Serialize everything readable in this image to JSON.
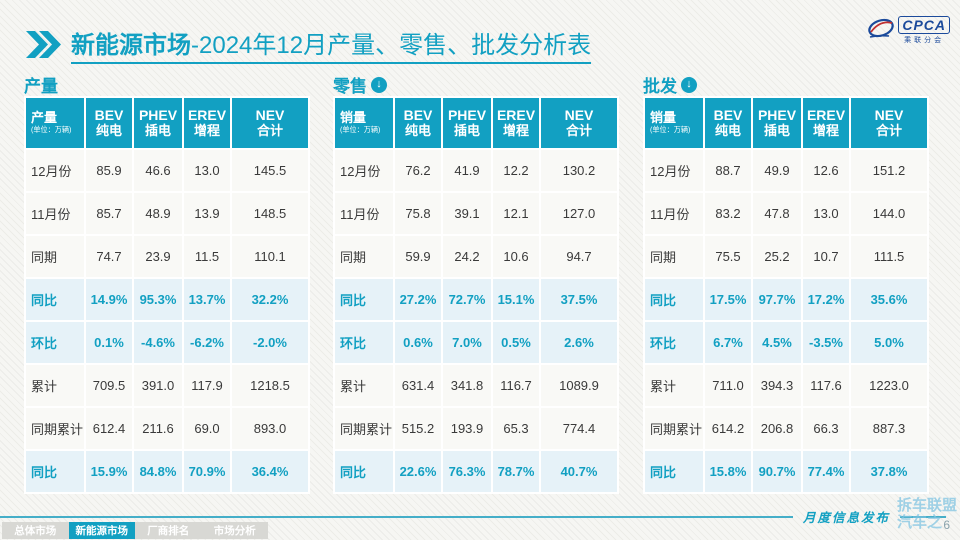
{
  "title": {
    "prefix": "新能源市场",
    "suffix": "-2024年12月产量、零售、批发分析表"
  },
  "logo": {
    "name": "CPCA",
    "subtitle": "乘联分会"
  },
  "watermark_logo_text": "CPCA",
  "unit_note": "(单位：万辆)",
  "column_headers": [
    {
      "en": "BEV",
      "cn": "纯电"
    },
    {
      "en": "PHEV",
      "cn": "插电"
    },
    {
      "en": "EREV",
      "cn": "增程"
    },
    {
      "en": "NEV",
      "cn": "合计"
    }
  ],
  "tables": [
    {
      "section": "产量",
      "corner_label": "产量",
      "has_arrow": false,
      "rows": [
        {
          "label": "12月份",
          "values": [
            "85.9",
            "46.6",
            "13.0",
            "145.5"
          ],
          "hl": false
        },
        {
          "label": "11月份",
          "values": [
            "85.7",
            "48.9",
            "13.9",
            "148.5"
          ],
          "hl": false
        },
        {
          "label": "同期",
          "values": [
            "74.7",
            "23.9",
            "11.5",
            "110.1"
          ],
          "hl": false
        },
        {
          "label": "同比",
          "values": [
            "14.9%",
            "95.3%",
            "13.7%",
            "32.2%"
          ],
          "hl": true
        },
        {
          "label": "环比",
          "values": [
            "0.1%",
            "-4.6%",
            "-6.2%",
            "-2.0%"
          ],
          "hl": true
        },
        {
          "label": "累计",
          "values": [
            "709.5",
            "391.0",
            "117.9",
            "1218.5"
          ],
          "hl": false
        },
        {
          "label": "同期累计",
          "values": [
            "612.4",
            "211.6",
            "69.0",
            "893.0"
          ],
          "hl": false
        },
        {
          "label": "同比",
          "values": [
            "15.9%",
            "84.8%",
            "70.9%",
            "36.4%"
          ],
          "hl": true
        }
      ]
    },
    {
      "section": "零售",
      "corner_label": "销量",
      "has_arrow": true,
      "rows": [
        {
          "label": "12月份",
          "values": [
            "76.2",
            "41.9",
            "12.2",
            "130.2"
          ],
          "hl": false
        },
        {
          "label": "11月份",
          "values": [
            "75.8",
            "39.1",
            "12.1",
            "127.0"
          ],
          "hl": false
        },
        {
          "label": "同期",
          "values": [
            "59.9",
            "24.2",
            "10.6",
            "94.7"
          ],
          "hl": false
        },
        {
          "label": "同比",
          "values": [
            "27.2%",
            "72.7%",
            "15.1%",
            "37.5%"
          ],
          "hl": true
        },
        {
          "label": "环比",
          "values": [
            "0.6%",
            "7.0%",
            "0.5%",
            "2.6%"
          ],
          "hl": true
        },
        {
          "label": "累计",
          "values": [
            "631.4",
            "341.8",
            "116.7",
            "1089.9"
          ],
          "hl": false
        },
        {
          "label": "同期累计",
          "values": [
            "515.2",
            "193.9",
            "65.3",
            "774.4"
          ],
          "hl": false
        },
        {
          "label": "同比",
          "values": [
            "22.6%",
            "76.3%",
            "78.7%",
            "40.7%"
          ],
          "hl": true
        }
      ]
    },
    {
      "section": "批发",
      "corner_label": "销量",
      "has_arrow": true,
      "rows": [
        {
          "label": "12月份",
          "values": [
            "88.7",
            "49.9",
            "12.6",
            "151.2"
          ],
          "hl": false
        },
        {
          "label": "11月份",
          "values": [
            "83.2",
            "47.8",
            "13.0",
            "144.0"
          ],
          "hl": false
        },
        {
          "label": "同期",
          "values": [
            "75.5",
            "25.2",
            "10.7",
            "111.5"
          ],
          "hl": false
        },
        {
          "label": "同比",
          "values": [
            "17.5%",
            "97.7%",
            "17.2%",
            "35.6%"
          ],
          "hl": true
        },
        {
          "label": "环比",
          "values": [
            "6.7%",
            "4.5%",
            "-3.5%",
            "5.0%"
          ],
          "hl": true
        },
        {
          "label": "累计",
          "values": [
            "711.0",
            "394.3",
            "117.6",
            "1223.0"
          ],
          "hl": false
        },
        {
          "label": "同期累计",
          "values": [
            "614.2",
            "206.8",
            "66.3",
            "887.3"
          ],
          "hl": false
        },
        {
          "label": "同比",
          "values": [
            "15.8%",
            "90.7%",
            "77.4%",
            "37.8%"
          ],
          "hl": true
        }
      ]
    }
  ],
  "footer": {
    "tabs": [
      {
        "name": "overall-market",
        "label": "总体市场",
        "active": false
      },
      {
        "name": "nev-market",
        "label": "新能源市场",
        "active": true
      },
      {
        "name": "oem-ranking",
        "label": "厂商排名",
        "active": false
      },
      {
        "name": "market-analysis",
        "label": "市场分析",
        "active": false
      }
    ],
    "release_label": "月度信息发布",
    "page_number": "6",
    "watermark_line1": "拆车联盟",
    "watermark_line2": "汽车之"
  },
  "colors": {
    "accent": "#12A0C2",
    "highlight_bg": "#E6F2F8",
    "logo_blue": "#1B4A9B"
  }
}
